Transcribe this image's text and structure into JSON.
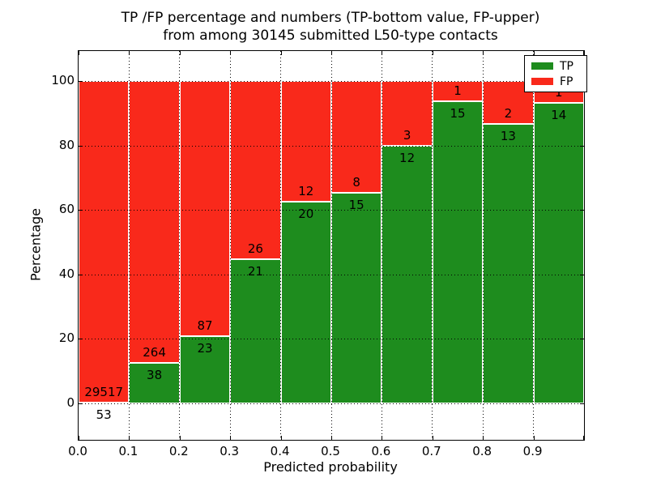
{
  "chart_data": {
    "type": "bar",
    "stacked": true,
    "orientation": "vertical",
    "title_line1": "TP /FP percentage and numbers (TP-bottom value, FP-upper)",
    "title_line2": "from among 30145 submitted L50-type contacts",
    "xlabel": "Predicted probability",
    "ylabel": "Percentage",
    "x_tick_labels": [
      "0.0",
      "0.1",
      "0.2",
      "0.3",
      "0.4",
      "0.5",
      "0.6",
      "0.7",
      "0.8",
      "0.9"
    ],
    "y_tick_labels": [
      "0",
      "20",
      "40",
      "60",
      "80",
      "100"
    ],
    "y_tick_values": [
      0,
      20,
      40,
      60,
      80,
      100
    ],
    "xlim": [
      0.0,
      1.0
    ],
    "ylim": [
      -11.3,
      109.3
    ],
    "grid": "dotted",
    "bar_value_note": "green bar height = TP/(TP+FP)*100, red stacked to 100%; labels show raw counts",
    "bins": [
      {
        "x_start": 0.0,
        "x_end": 0.1,
        "tp": 53,
        "fp": 29517
      },
      {
        "x_start": 0.1,
        "x_end": 0.2,
        "tp": 38,
        "fp": 264
      },
      {
        "x_start": 0.2,
        "x_end": 0.3,
        "tp": 23,
        "fp": 87
      },
      {
        "x_start": 0.3,
        "x_end": 0.4,
        "tp": 21,
        "fp": 26
      },
      {
        "x_start": 0.4,
        "x_end": 0.5,
        "tp": 20,
        "fp": 12
      },
      {
        "x_start": 0.5,
        "x_end": 0.6,
        "tp": 15,
        "fp": 8
      },
      {
        "x_start": 0.6,
        "x_end": 0.7,
        "tp": 12,
        "fp": 3
      },
      {
        "x_start": 0.7,
        "x_end": 0.8,
        "tp": 15,
        "fp": 1
      },
      {
        "x_start": 0.8,
        "x_end": 0.9,
        "tp": 13,
        "fp": 2
      },
      {
        "x_start": 0.9,
        "x_end": 1.0,
        "tp": 14,
        "fp": 1
      }
    ],
    "series": [
      {
        "name": "TP",
        "color": "#1e8c1e",
        "values": [
          53,
          38,
          23,
          21,
          20,
          15,
          12,
          15,
          13,
          14
        ]
      },
      {
        "name": "FP",
        "color": "#f9291b",
        "values": [
          29517,
          264,
          87,
          26,
          12,
          8,
          3,
          1,
          2,
          1
        ]
      }
    ],
    "legend": {
      "position": "upper right",
      "entries": [
        {
          "label": "TP",
          "color": "#1e8c1e"
        },
        {
          "label": "FP",
          "color": "#f9291b"
        }
      ]
    },
    "colors": {
      "tp": "#1e8c1e",
      "fp": "#f9291b",
      "edge": "#ffffff",
      "grid": "#000000",
      "text": "#000000",
      "background": "#ffffff"
    }
  }
}
